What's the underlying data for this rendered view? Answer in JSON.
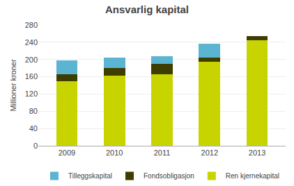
{
  "chart_data": {
    "type": "bar",
    "title": "Ansvarlig kapital",
    "ylabel": "Millioner kroner",
    "categories": [
      "2009",
      "2010",
      "2011",
      "2012",
      "2013"
    ],
    "series": [
      {
        "name": "Ren kjernekapital",
        "color": "#c8d400",
        "values": [
          150,
          162,
          165,
          195,
          245
        ]
      },
      {
        "name": "Fondsobligasjon",
        "color": "#3d3d00",
        "values": [
          15,
          18,
          25,
          10,
          10
        ]
      },
      {
        "name": "Tilleggskapital",
        "color": "#5ab4d2",
        "values": [
          33,
          25,
          18,
          32,
          0
        ]
      }
    ],
    "stacked": true,
    "ylim": [
      0,
      280
    ],
    "yticks": [
      0,
      40,
      80,
      120,
      160,
      200,
      240,
      280
    ],
    "grid": true,
    "legend": "bottom"
  }
}
